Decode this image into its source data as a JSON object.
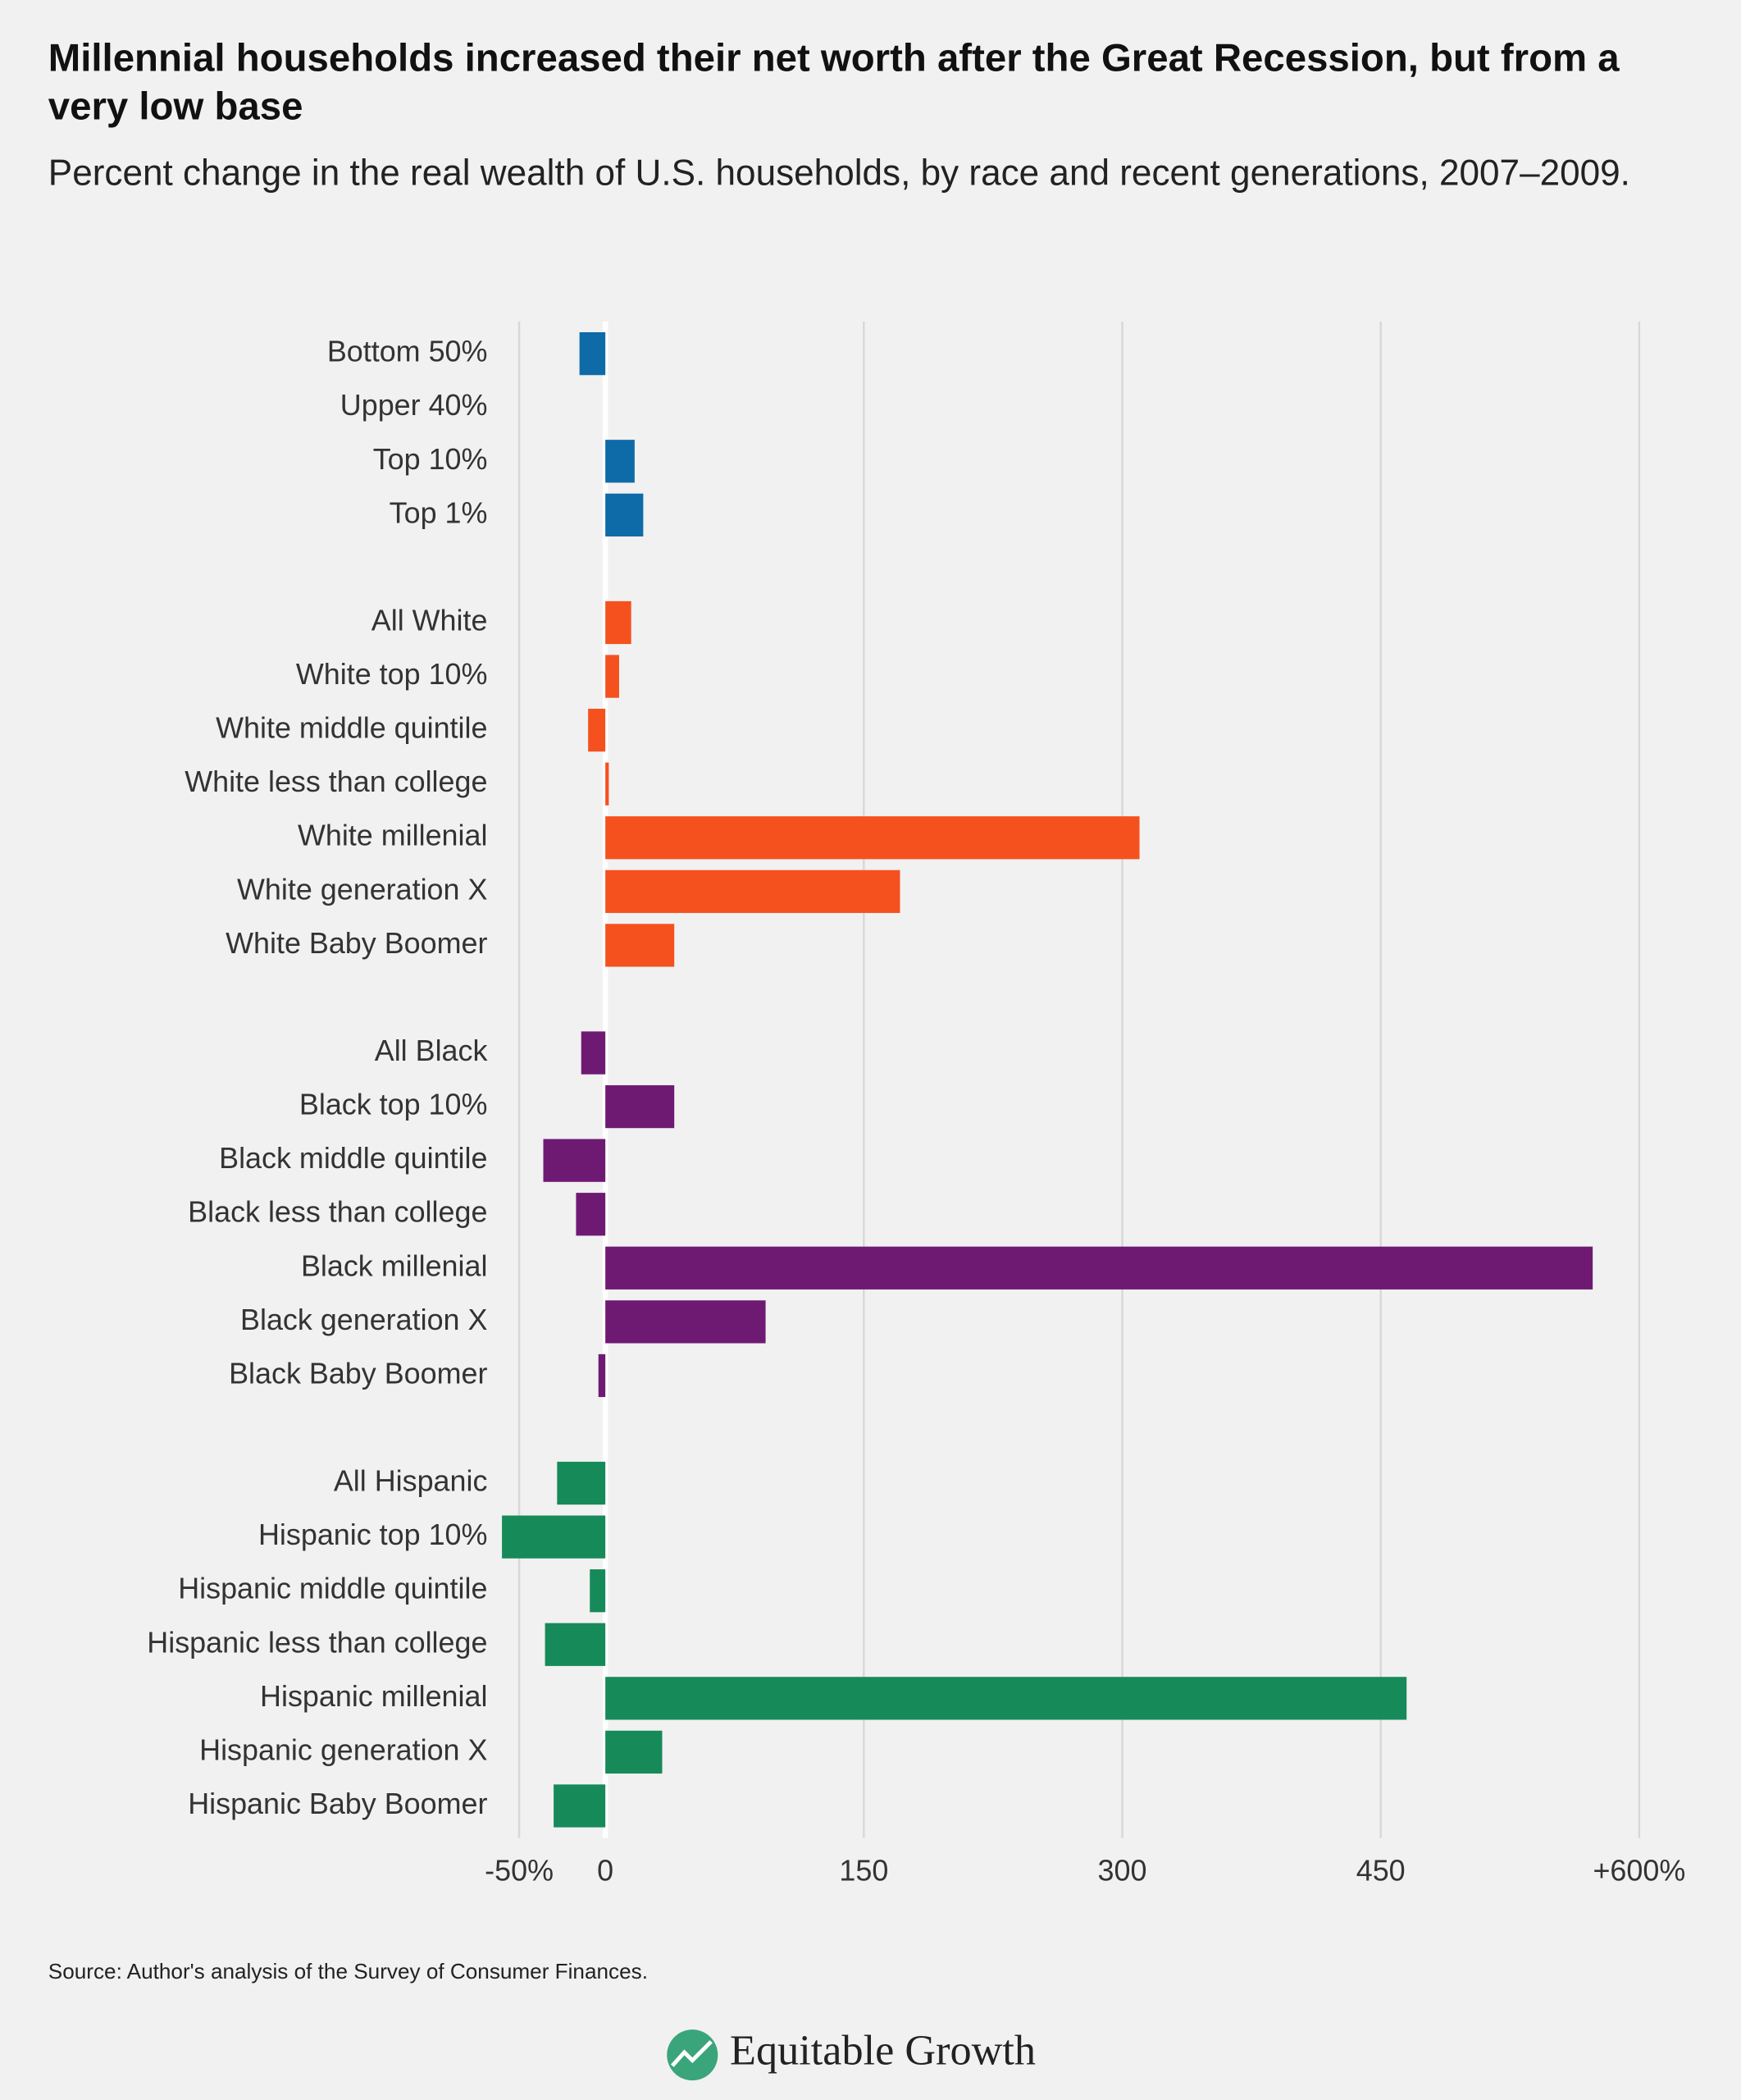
{
  "chart_data": {
    "type": "barh",
    "title": "Millennial households increased their net worth after the Great Recession, but from a very low base",
    "subtitle": "Percent change in the real wealth of U.S. households, by race and recent generations, 2007–2009.",
    "source": "Source: Author's analysis of the Survey of Consumer Finances.",
    "logo": "Equitable Growth",
    "categories": [
      "Bottom 50%",
      "Upper 40%",
      "Top 10%",
      "Top 1%",
      null,
      "All White",
      "White top 10%",
      "White middle quintile",
      "White less than college",
      "White millenial",
      "White generation X",
      "White Baby Boomer",
      null,
      "All Black",
      "Black top 10%",
      "Black middle quintile",
      "Black less than college",
      "Black millenial",
      "Black generation X",
      "Black Baby Boomer",
      null,
      "All Hispanic",
      "Hispanic top 10%",
      "Hispanic middle quintile",
      "Hispanic less than college",
      "Hispanic millenial",
      "Hispanic generation X",
      "Hispanic Baby Boomer"
    ],
    "values": [
      -15,
      0,
      17,
      22,
      null,
      15,
      8,
      -10,
      2,
      310,
      171,
      40,
      null,
      -14,
      40,
      -36,
      -17,
      573,
      93,
      -4,
      null,
      -28,
      -60,
      -9,
      -35,
      465,
      33,
      -30
    ],
    "colors": [
      "#0f6aa8",
      "#0f6aa8",
      "#0f6aa8",
      "#0f6aa8",
      null,
      "#f5511f",
      "#f5511f",
      "#f5511f",
      "#f5511f",
      "#f5511f",
      "#f5511f",
      "#f5511f",
      null,
      "#6e1a73",
      "#6e1a73",
      "#6e1a73",
      "#6e1a73",
      "#6e1a73",
      "#6e1a73",
      "#6e1a73",
      null,
      "#178a5a",
      "#178a5a",
      "#178a5a",
      "#178a5a",
      "#178a5a",
      "#178a5a",
      "#178a5a"
    ],
    "xlim": [
      -60,
      600
    ],
    "xticks": [
      {
        "value": -50,
        "label": "-50%"
      },
      0,
      150,
      300,
      450,
      {
        "value": 600,
        "label": "+600%"
      }
    ],
    "grid": true
  }
}
